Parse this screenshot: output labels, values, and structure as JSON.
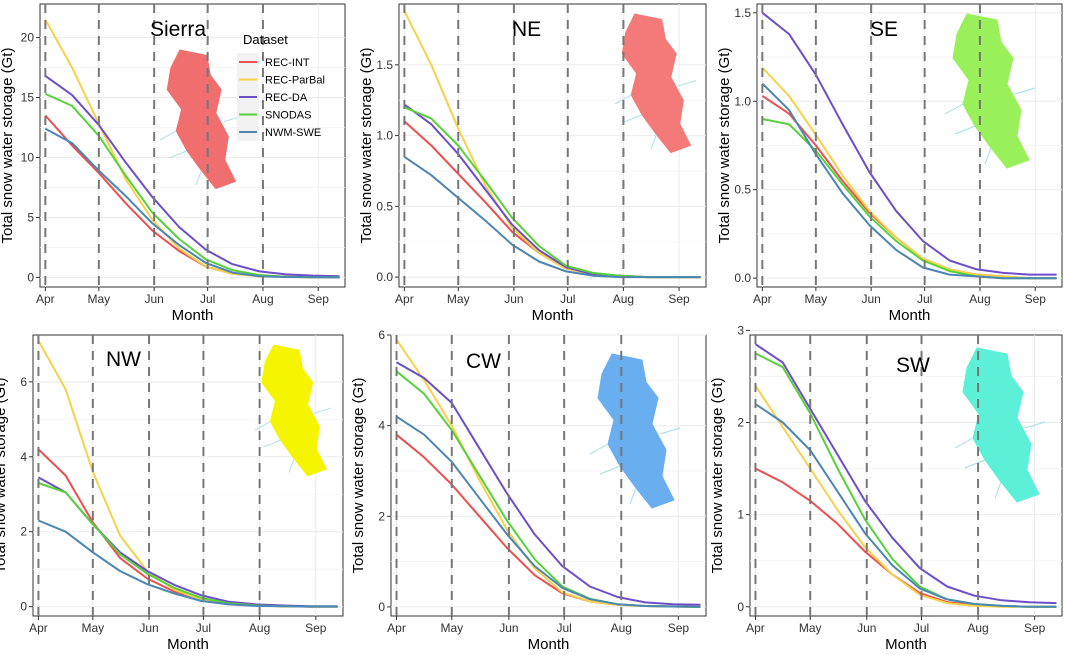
{
  "chart_data": {
    "type": "line",
    "xlabel": "Month",
    "ylabel": "Total snow water storage (Gt)",
    "x_tick_labels": [
      "Apr",
      "May",
      "Jun",
      "Jul",
      "Aug",
      "Sep"
    ],
    "legend": {
      "title": "Dataset",
      "entries": [
        {
          "name": "REC-INT",
          "color": "#EE4E4E"
        },
        {
          "name": "REC-ParBal",
          "color": "#F5D24A"
        },
        {
          "name": "REC-DA",
          "color": "#6C4EC9"
        },
        {
          "name": "SNODAS",
          "color": "#57D13A"
        },
        {
          "name": "NWM-SWE",
          "color": "#4B86B4"
        }
      ]
    },
    "panels": [
      {
        "title": "Sierra",
        "region_color": "#F06E6E",
        "ylim": [
          -0.8,
          22.8
        ],
        "yticks": [
          0,
          5,
          10,
          15,
          20
        ],
        "ytick_labels": [
          "0",
          "5",
          "10",
          "15",
          "20"
        ],
        "x_days": [
          0,
          15,
          30,
          45,
          60,
          75,
          90,
          105,
          120,
          135,
          150,
          165
        ],
        "series": [
          {
            "name": "REC-INT",
            "values": [
              13.5,
              11.0,
              8.7,
              6.2,
              3.9,
              2.2,
              0.9,
              0.3,
              0.1,
              0.05,
              0.02,
              0.01
            ]
          },
          {
            "name": "REC-ParBal",
            "values": [
              21.5,
              17.5,
              12.8,
              8.2,
              4.8,
              2.4,
              0.9,
              0.3,
              0.1,
              0.05,
              0.02,
              0.01
            ]
          },
          {
            "name": "REC-DA",
            "values": [
              16.8,
              15.2,
              12.7,
              9.6,
              6.7,
              4.2,
              2.3,
              1.1,
              0.5,
              0.25,
              0.15,
              0.1
            ]
          },
          {
            "name": "SNODAS",
            "values": [
              15.3,
              14.3,
              11.8,
              8.5,
              5.4,
              3.2,
              1.5,
              0.6,
              0.2,
              0.05,
              0.02,
              0.01
            ]
          },
          {
            "name": "NWM-SWE",
            "values": [
              12.4,
              11.2,
              8.9,
              6.8,
              4.5,
              2.7,
              1.2,
              0.4,
              0.1,
              0.03,
              0.01,
              0.0
            ]
          }
        ]
      },
      {
        "title": "NE",
        "region_color": "#F47A7A",
        "ylim": [
          -0.07,
          1.93
        ],
        "yticks": [
          0.0,
          0.5,
          1.0,
          1.5
        ],
        "ytick_labels": [
          "0.0",
          "0.5",
          "1.0",
          "1.5"
        ],
        "x_days": [
          0,
          15,
          30,
          45,
          60,
          75,
          90,
          105,
          120,
          135,
          150,
          165
        ],
        "series": [
          {
            "name": "REC-INT",
            "values": [
              1.1,
              0.93,
              0.73,
              0.53,
              0.32,
              0.17,
              0.06,
              0.02,
              0.01,
              0.0,
              0.0,
              0.0
            ]
          },
          {
            "name": "REC-ParBal",
            "values": [
              1.88,
              1.5,
              1.05,
              0.65,
              0.35,
              0.17,
              0.06,
              0.02,
              0.01,
              0.0,
              0.0,
              0.0
            ]
          },
          {
            "name": "REC-DA",
            "values": [
              1.22,
              1.08,
              0.87,
              0.62,
              0.37,
              0.19,
              0.07,
              0.02,
              0.01,
              0.0,
              0.0,
              0.0
            ]
          },
          {
            "name": "SNODAS",
            "values": [
              1.2,
              1.12,
              0.93,
              0.68,
              0.42,
              0.22,
              0.08,
              0.03,
              0.01,
              0.0,
              0.0,
              0.0
            ]
          },
          {
            "name": "NWM-SWE",
            "values": [
              0.85,
              0.72,
              0.56,
              0.4,
              0.23,
              0.11,
              0.04,
              0.01,
              0.0,
              0.0,
              0.0,
              0.0
            ]
          }
        ]
      },
      {
        "title": "SE",
        "region_color": "#9AF05A",
        "ylim": [
          -0.05,
          1.55
        ],
        "yticks": [
          0.0,
          0.5,
          1.0,
          1.5
        ],
        "ytick_labels": [
          "0.0",
          "0.5",
          "1.0",
          "1.5"
        ],
        "x_days": [
          0,
          15,
          30,
          45,
          60,
          75,
          90,
          105,
          120,
          135,
          150,
          165
        ],
        "series": [
          {
            "name": "REC-INT",
            "values": [
              1.03,
              0.93,
              0.75,
              0.55,
              0.37,
              0.23,
              0.11,
              0.05,
              0.02,
              0.01,
              0.0,
              0.0
            ]
          },
          {
            "name": "REC-ParBal",
            "values": [
              1.19,
              1.03,
              0.81,
              0.58,
              0.38,
              0.23,
              0.11,
              0.05,
              0.02,
              0.01,
              0.0,
              0.0
            ]
          },
          {
            "name": "REC-DA",
            "values": [
              1.5,
              1.38,
              1.15,
              0.87,
              0.6,
              0.38,
              0.21,
              0.1,
              0.05,
              0.03,
              0.02,
              0.02
            ]
          },
          {
            "name": "SNODAS",
            "values": [
              0.9,
              0.87,
              0.72,
              0.53,
              0.35,
              0.21,
              0.1,
              0.04,
              0.01,
              0.0,
              0.0,
              0.0
            ]
          },
          {
            "name": "NWM-SWE",
            "values": [
              1.1,
              0.95,
              0.7,
              0.48,
              0.3,
              0.16,
              0.06,
              0.02,
              0.01,
              0.0,
              0.0,
              0.0
            ]
          }
        ]
      },
      {
        "title": "NW",
        "region_color": "#F5F500",
        "ylim": [
          -0.25,
          7.25
        ],
        "yticks": [
          0,
          2,
          4,
          6
        ],
        "ytick_labels": [
          "0",
          "2",
          "4",
          "6"
        ],
        "x_days": [
          0,
          15,
          30,
          45,
          60,
          75,
          90,
          105,
          120,
          135,
          150,
          165
        ],
        "series": [
          {
            "name": "REC-INT",
            "values": [
              4.2,
              3.5,
              2.25,
              1.3,
              0.75,
              0.4,
              0.17,
              0.07,
              0.03,
              0.01,
              0.0,
              0.0
            ]
          },
          {
            "name": "REC-ParBal",
            "values": [
              7.1,
              5.8,
              3.6,
              1.9,
              0.95,
              0.45,
              0.18,
              0.07,
              0.03,
              0.01,
              0.0,
              0.0
            ]
          },
          {
            "name": "REC-DA",
            "values": [
              3.45,
              3.05,
              2.2,
              1.45,
              0.95,
              0.58,
              0.3,
              0.13,
              0.06,
              0.03,
              0.01,
              0.01
            ]
          },
          {
            "name": "SNODAS",
            "values": [
              3.3,
              3.05,
              2.2,
              1.4,
              0.88,
              0.5,
              0.23,
              0.09,
              0.03,
              0.01,
              0.0,
              0.0
            ]
          },
          {
            "name": "NWM-SWE",
            "values": [
              2.3,
              2.0,
              1.45,
              0.95,
              0.6,
              0.35,
              0.15,
              0.06,
              0.02,
              0.01,
              0.0,
              0.0
            ]
          }
        ]
      },
      {
        "title": "CW",
        "region_color": "#69AEEF",
        "ylim": [
          -0.2,
          6.0
        ],
        "yticks": [
          0,
          2,
          4,
          6
        ],
        "ytick_labels": [
          "0",
          "2",
          "4",
          "6"
        ],
        "x_days": [
          0,
          15,
          30,
          45,
          60,
          75,
          90,
          105,
          120,
          135,
          150,
          165
        ],
        "series": [
          {
            "name": "REC-INT",
            "values": [
              3.8,
              3.3,
              2.7,
              2.0,
              1.3,
              0.7,
              0.3,
              0.12,
              0.05,
              0.02,
              0.01,
              0.0
            ]
          },
          {
            "name": "REC-ParBal",
            "values": [
              5.9,
              5.0,
              4.0,
              2.8,
              1.7,
              0.85,
              0.32,
              0.12,
              0.05,
              0.02,
              0.01,
              0.0
            ]
          },
          {
            "name": "REC-DA",
            "values": [
              5.4,
              5.05,
              4.5,
              3.5,
              2.5,
              1.6,
              0.9,
              0.45,
              0.22,
              0.1,
              0.06,
              0.05
            ]
          },
          {
            "name": "SNODAS",
            "values": [
              5.2,
              4.7,
              3.9,
              2.9,
              1.9,
              1.05,
              0.45,
              0.18,
              0.06,
              0.02,
              0.01,
              0.0
            ]
          },
          {
            "name": "NWM-SWE",
            "values": [
              4.2,
              3.8,
              3.2,
              2.4,
              1.6,
              0.9,
              0.42,
              0.17,
              0.06,
              0.02,
              0.01,
              0.0
            ]
          }
        ]
      },
      {
        "title": "SW",
        "region_color": "#5CF0D8",
        "ylim": [
          -0.1,
          2.95
        ],
        "yticks": [
          0,
          1,
          2,
          3
        ],
        "ytick_labels": [
          "0",
          "1",
          "2",
          "3"
        ],
        "x_days": [
          0,
          15,
          30,
          45,
          60,
          75,
          90,
          105,
          120,
          135,
          150,
          165
        ],
        "series": [
          {
            "name": "REC-INT",
            "values": [
              1.5,
              1.35,
              1.15,
              0.9,
              0.6,
              0.35,
              0.15,
              0.05,
              0.02,
              0.01,
              0.0,
              0.0
            ]
          },
          {
            "name": "REC-ParBal",
            "values": [
              2.4,
              1.95,
              1.5,
              1.05,
              0.65,
              0.35,
              0.13,
              0.04,
              0.01,
              0.0,
              0.0,
              0.0
            ]
          },
          {
            "name": "REC-DA",
            "values": [
              2.85,
              2.65,
              2.15,
              1.65,
              1.15,
              0.75,
              0.42,
              0.22,
              0.12,
              0.07,
              0.05,
              0.04
            ]
          },
          {
            "name": "SNODAS",
            "values": [
              2.75,
              2.6,
              2.1,
              1.5,
              0.95,
              0.52,
              0.22,
              0.08,
              0.03,
              0.01,
              0.0,
              0.0
            ]
          },
          {
            "name": "NWM-SWE",
            "values": [
              2.2,
              2.0,
              1.7,
              1.25,
              0.8,
              0.45,
              0.2,
              0.08,
              0.03,
              0.01,
              0.0,
              0.0
            ]
          }
        ]
      }
    ]
  }
}
